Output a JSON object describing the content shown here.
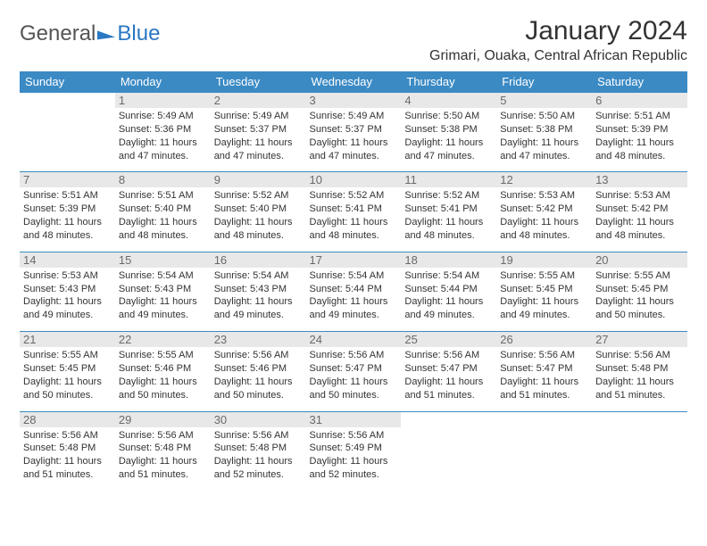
{
  "logo": {
    "text1": "General",
    "text2": "Blue"
  },
  "title": "January 2024",
  "location": "Grimari, Ouaka, Central African Republic",
  "colors": {
    "header_bg": "#3b8ac4",
    "header_text": "#ffffff",
    "daynum_bg": "#e8e8e8",
    "daynum_text": "#6a6a6a",
    "border": "#3b8ac4",
    "text": "#333333",
    "logo_gray": "#555555",
    "logo_blue": "#2a78c2"
  },
  "weekdays": [
    "Sunday",
    "Monday",
    "Tuesday",
    "Wednesday",
    "Thursday",
    "Friday",
    "Saturday"
  ],
  "grid": [
    [
      null,
      {
        "n": "1",
        "sr": "Sunrise: 5:49 AM",
        "ss": "Sunset: 5:36 PM",
        "d1": "Daylight: 11 hours",
        "d2": "and 47 minutes."
      },
      {
        "n": "2",
        "sr": "Sunrise: 5:49 AM",
        "ss": "Sunset: 5:37 PM",
        "d1": "Daylight: 11 hours",
        "d2": "and 47 minutes."
      },
      {
        "n": "3",
        "sr": "Sunrise: 5:49 AM",
        "ss": "Sunset: 5:37 PM",
        "d1": "Daylight: 11 hours",
        "d2": "and 47 minutes."
      },
      {
        "n": "4",
        "sr": "Sunrise: 5:50 AM",
        "ss": "Sunset: 5:38 PM",
        "d1": "Daylight: 11 hours",
        "d2": "and 47 minutes."
      },
      {
        "n": "5",
        "sr": "Sunrise: 5:50 AM",
        "ss": "Sunset: 5:38 PM",
        "d1": "Daylight: 11 hours",
        "d2": "and 47 minutes."
      },
      {
        "n": "6",
        "sr": "Sunrise: 5:51 AM",
        "ss": "Sunset: 5:39 PM",
        "d1": "Daylight: 11 hours",
        "d2": "and 48 minutes."
      }
    ],
    [
      {
        "n": "7",
        "sr": "Sunrise: 5:51 AM",
        "ss": "Sunset: 5:39 PM",
        "d1": "Daylight: 11 hours",
        "d2": "and 48 minutes."
      },
      {
        "n": "8",
        "sr": "Sunrise: 5:51 AM",
        "ss": "Sunset: 5:40 PM",
        "d1": "Daylight: 11 hours",
        "d2": "and 48 minutes."
      },
      {
        "n": "9",
        "sr": "Sunrise: 5:52 AM",
        "ss": "Sunset: 5:40 PM",
        "d1": "Daylight: 11 hours",
        "d2": "and 48 minutes."
      },
      {
        "n": "10",
        "sr": "Sunrise: 5:52 AM",
        "ss": "Sunset: 5:41 PM",
        "d1": "Daylight: 11 hours",
        "d2": "and 48 minutes."
      },
      {
        "n": "11",
        "sr": "Sunrise: 5:52 AM",
        "ss": "Sunset: 5:41 PM",
        "d1": "Daylight: 11 hours",
        "d2": "and 48 minutes."
      },
      {
        "n": "12",
        "sr": "Sunrise: 5:53 AM",
        "ss": "Sunset: 5:42 PM",
        "d1": "Daylight: 11 hours",
        "d2": "and 48 minutes."
      },
      {
        "n": "13",
        "sr": "Sunrise: 5:53 AM",
        "ss": "Sunset: 5:42 PM",
        "d1": "Daylight: 11 hours",
        "d2": "and 48 minutes."
      }
    ],
    [
      {
        "n": "14",
        "sr": "Sunrise: 5:53 AM",
        "ss": "Sunset: 5:43 PM",
        "d1": "Daylight: 11 hours",
        "d2": "and 49 minutes."
      },
      {
        "n": "15",
        "sr": "Sunrise: 5:54 AM",
        "ss": "Sunset: 5:43 PM",
        "d1": "Daylight: 11 hours",
        "d2": "and 49 minutes."
      },
      {
        "n": "16",
        "sr": "Sunrise: 5:54 AM",
        "ss": "Sunset: 5:43 PM",
        "d1": "Daylight: 11 hours",
        "d2": "and 49 minutes."
      },
      {
        "n": "17",
        "sr": "Sunrise: 5:54 AM",
        "ss": "Sunset: 5:44 PM",
        "d1": "Daylight: 11 hours",
        "d2": "and 49 minutes."
      },
      {
        "n": "18",
        "sr": "Sunrise: 5:54 AM",
        "ss": "Sunset: 5:44 PM",
        "d1": "Daylight: 11 hours",
        "d2": "and 49 minutes."
      },
      {
        "n": "19",
        "sr": "Sunrise: 5:55 AM",
        "ss": "Sunset: 5:45 PM",
        "d1": "Daylight: 11 hours",
        "d2": "and 49 minutes."
      },
      {
        "n": "20",
        "sr": "Sunrise: 5:55 AM",
        "ss": "Sunset: 5:45 PM",
        "d1": "Daylight: 11 hours",
        "d2": "and 50 minutes."
      }
    ],
    [
      {
        "n": "21",
        "sr": "Sunrise: 5:55 AM",
        "ss": "Sunset: 5:45 PM",
        "d1": "Daylight: 11 hours",
        "d2": "and 50 minutes."
      },
      {
        "n": "22",
        "sr": "Sunrise: 5:55 AM",
        "ss": "Sunset: 5:46 PM",
        "d1": "Daylight: 11 hours",
        "d2": "and 50 minutes."
      },
      {
        "n": "23",
        "sr": "Sunrise: 5:56 AM",
        "ss": "Sunset: 5:46 PM",
        "d1": "Daylight: 11 hours",
        "d2": "and 50 minutes."
      },
      {
        "n": "24",
        "sr": "Sunrise: 5:56 AM",
        "ss": "Sunset: 5:47 PM",
        "d1": "Daylight: 11 hours",
        "d2": "and 50 minutes."
      },
      {
        "n": "25",
        "sr": "Sunrise: 5:56 AM",
        "ss": "Sunset: 5:47 PM",
        "d1": "Daylight: 11 hours",
        "d2": "and 51 minutes."
      },
      {
        "n": "26",
        "sr": "Sunrise: 5:56 AM",
        "ss": "Sunset: 5:47 PM",
        "d1": "Daylight: 11 hours",
        "d2": "and 51 minutes."
      },
      {
        "n": "27",
        "sr": "Sunrise: 5:56 AM",
        "ss": "Sunset: 5:48 PM",
        "d1": "Daylight: 11 hours",
        "d2": "and 51 minutes."
      }
    ],
    [
      {
        "n": "28",
        "sr": "Sunrise: 5:56 AM",
        "ss": "Sunset: 5:48 PM",
        "d1": "Daylight: 11 hours",
        "d2": "and 51 minutes."
      },
      {
        "n": "29",
        "sr": "Sunrise: 5:56 AM",
        "ss": "Sunset: 5:48 PM",
        "d1": "Daylight: 11 hours",
        "d2": "and 51 minutes."
      },
      {
        "n": "30",
        "sr": "Sunrise: 5:56 AM",
        "ss": "Sunset: 5:48 PM",
        "d1": "Daylight: 11 hours",
        "d2": "and 52 minutes."
      },
      {
        "n": "31",
        "sr": "Sunrise: 5:56 AM",
        "ss": "Sunset: 5:49 PM",
        "d1": "Daylight: 11 hours",
        "d2": "and 52 minutes."
      },
      null,
      null,
      null
    ]
  ]
}
